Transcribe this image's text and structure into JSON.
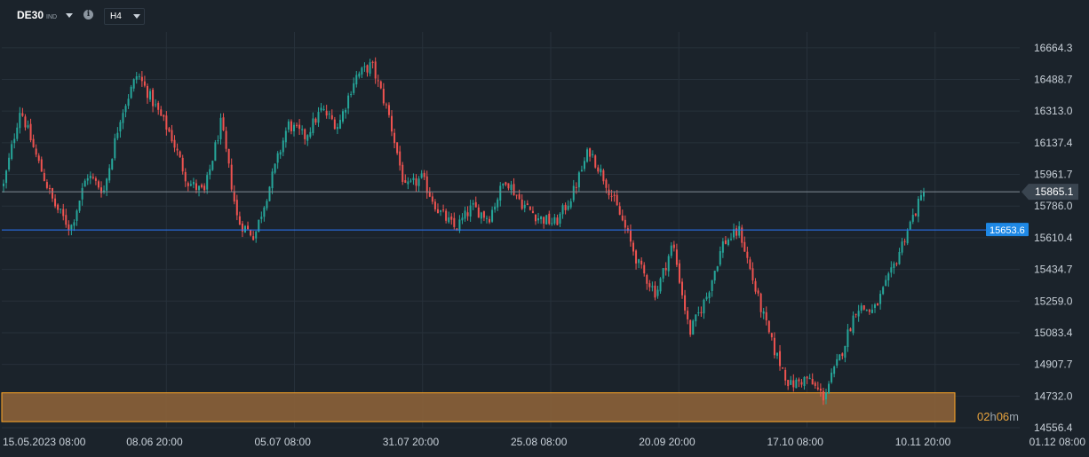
{
  "toolbar": {
    "symbol": "DE30",
    "symbol_suffix": "IND",
    "timeframe": "H4"
  },
  "colors": {
    "background": "#1b232b",
    "grid": "#27313b",
    "bull": "#26a69a",
    "bear": "#ef5350",
    "horizontal_line": "#2979ff",
    "zone_fill": "#8c6239",
    "zone_border": "#ffa726",
    "current_price_line": "#7f8a94",
    "countdown": "#e8a33d"
  },
  "countdown": {
    "hours": "02",
    "hours_unit": "h",
    "minutes": "06",
    "minutes_unit": "m"
  },
  "chart_data": {
    "type": "candlestick",
    "title": "",
    "instrument": "DE30",
    "timeframe": "H4",
    "y_axis": {
      "range": [
        14556.4,
        16752.0
      ],
      "ticks": [
        "16664.3",
        "16488.7",
        "16313.0",
        "16137.4",
        "15961.7",
        "15786.0",
        "15610.4",
        "15434.7",
        "15259.0",
        "15083.4",
        "14907.7",
        "14732.0",
        "14556.4"
      ]
    },
    "x_axis": {
      "range": [
        "15.05.2023 08:00",
        "01.12 08:00"
      ],
      "ticks": [
        "15.05.2023  08:00",
        "08.06  20:00",
        "05.07  08:00",
        "31.07  20:00",
        "25.08  08:00",
        "20.09  20:00",
        "17.10  08:00",
        "10.11  20:00",
        "01.12  08:00"
      ]
    },
    "current_price": "15865.1",
    "horizontal_line": {
      "label": "15653.6",
      "price": 15653.6
    },
    "support_zone": {
      "from": 14590,
      "to": 14750
    },
    "price_path": [
      [
        "15.05.2023 08:00",
        15900
      ],
      [
        "19.05",
        16330
      ],
      [
        "23.05",
        16050
      ],
      [
        "26.05",
        15800
      ],
      [
        "30.05",
        15660
      ],
      [
        "02.06",
        15960
      ],
      [
        "06.06",
        15870
      ],
      [
        "08.06 20:00",
        16290
      ],
      [
        "13.06",
        16520
      ],
      [
        "16.06",
        16350
      ],
      [
        "19.06",
        16180
      ],
      [
        "22.06",
        15920
      ],
      [
        "26.06",
        15860
      ],
      [
        "29.06",
        16250
      ],
      [
        "05.07 08:00",
        15700
      ],
      [
        "07.07",
        15620
      ],
      [
        "11.07",
        15930
      ],
      [
        "14.07",
        16240
      ],
      [
        "18.07",
        16170
      ],
      [
        "21.07",
        16320
      ],
      [
        "25.07",
        16230
      ],
      [
        "28.07",
        16500
      ],
      [
        "31.07 20:00",
        16570
      ],
      [
        "03.08",
        16300
      ],
      [
        "07.08",
        15880
      ],
      [
        "10.08",
        15940
      ],
      [
        "14.08",
        15760
      ],
      [
        "17.08",
        15660
      ],
      [
        "21.08",
        15780
      ],
      [
        "25.08 08:00",
        15720
      ],
      [
        "29.08",
        15940
      ],
      [
        "01.09",
        15800
      ],
      [
        "05.09",
        15720
      ],
      [
        "08.09",
        15690
      ],
      [
        "12.09",
        15850
      ],
      [
        "15.09",
        16100
      ],
      [
        "18.09",
        15920
      ],
      [
        "20.09 20:00",
        15700
      ],
      [
        "25.09",
        15450
      ],
      [
        "28.09",
        15300
      ],
      [
        "02.10",
        15580
      ],
      [
        "05.10",
        15080
      ],
      [
        "09.10",
        15280
      ],
      [
        "12.10",
        15580
      ],
      [
        "13.10",
        15650
      ],
      [
        "17.10 08:00",
        15300
      ],
      [
        "20.10",
        15000
      ],
      [
        "23.10",
        14790
      ],
      [
        "26.10",
        14830
      ],
      [
        "30.10",
        14730
      ],
      [
        "01.11",
        14950
      ],
      [
        "03.11",
        15230
      ],
      [
        "06.11",
        15200
      ],
      [
        "08.11",
        15400
      ],
      [
        "10.11 20:00",
        15650
      ],
      [
        "13.11",
        15865.1
      ]
    ]
  }
}
